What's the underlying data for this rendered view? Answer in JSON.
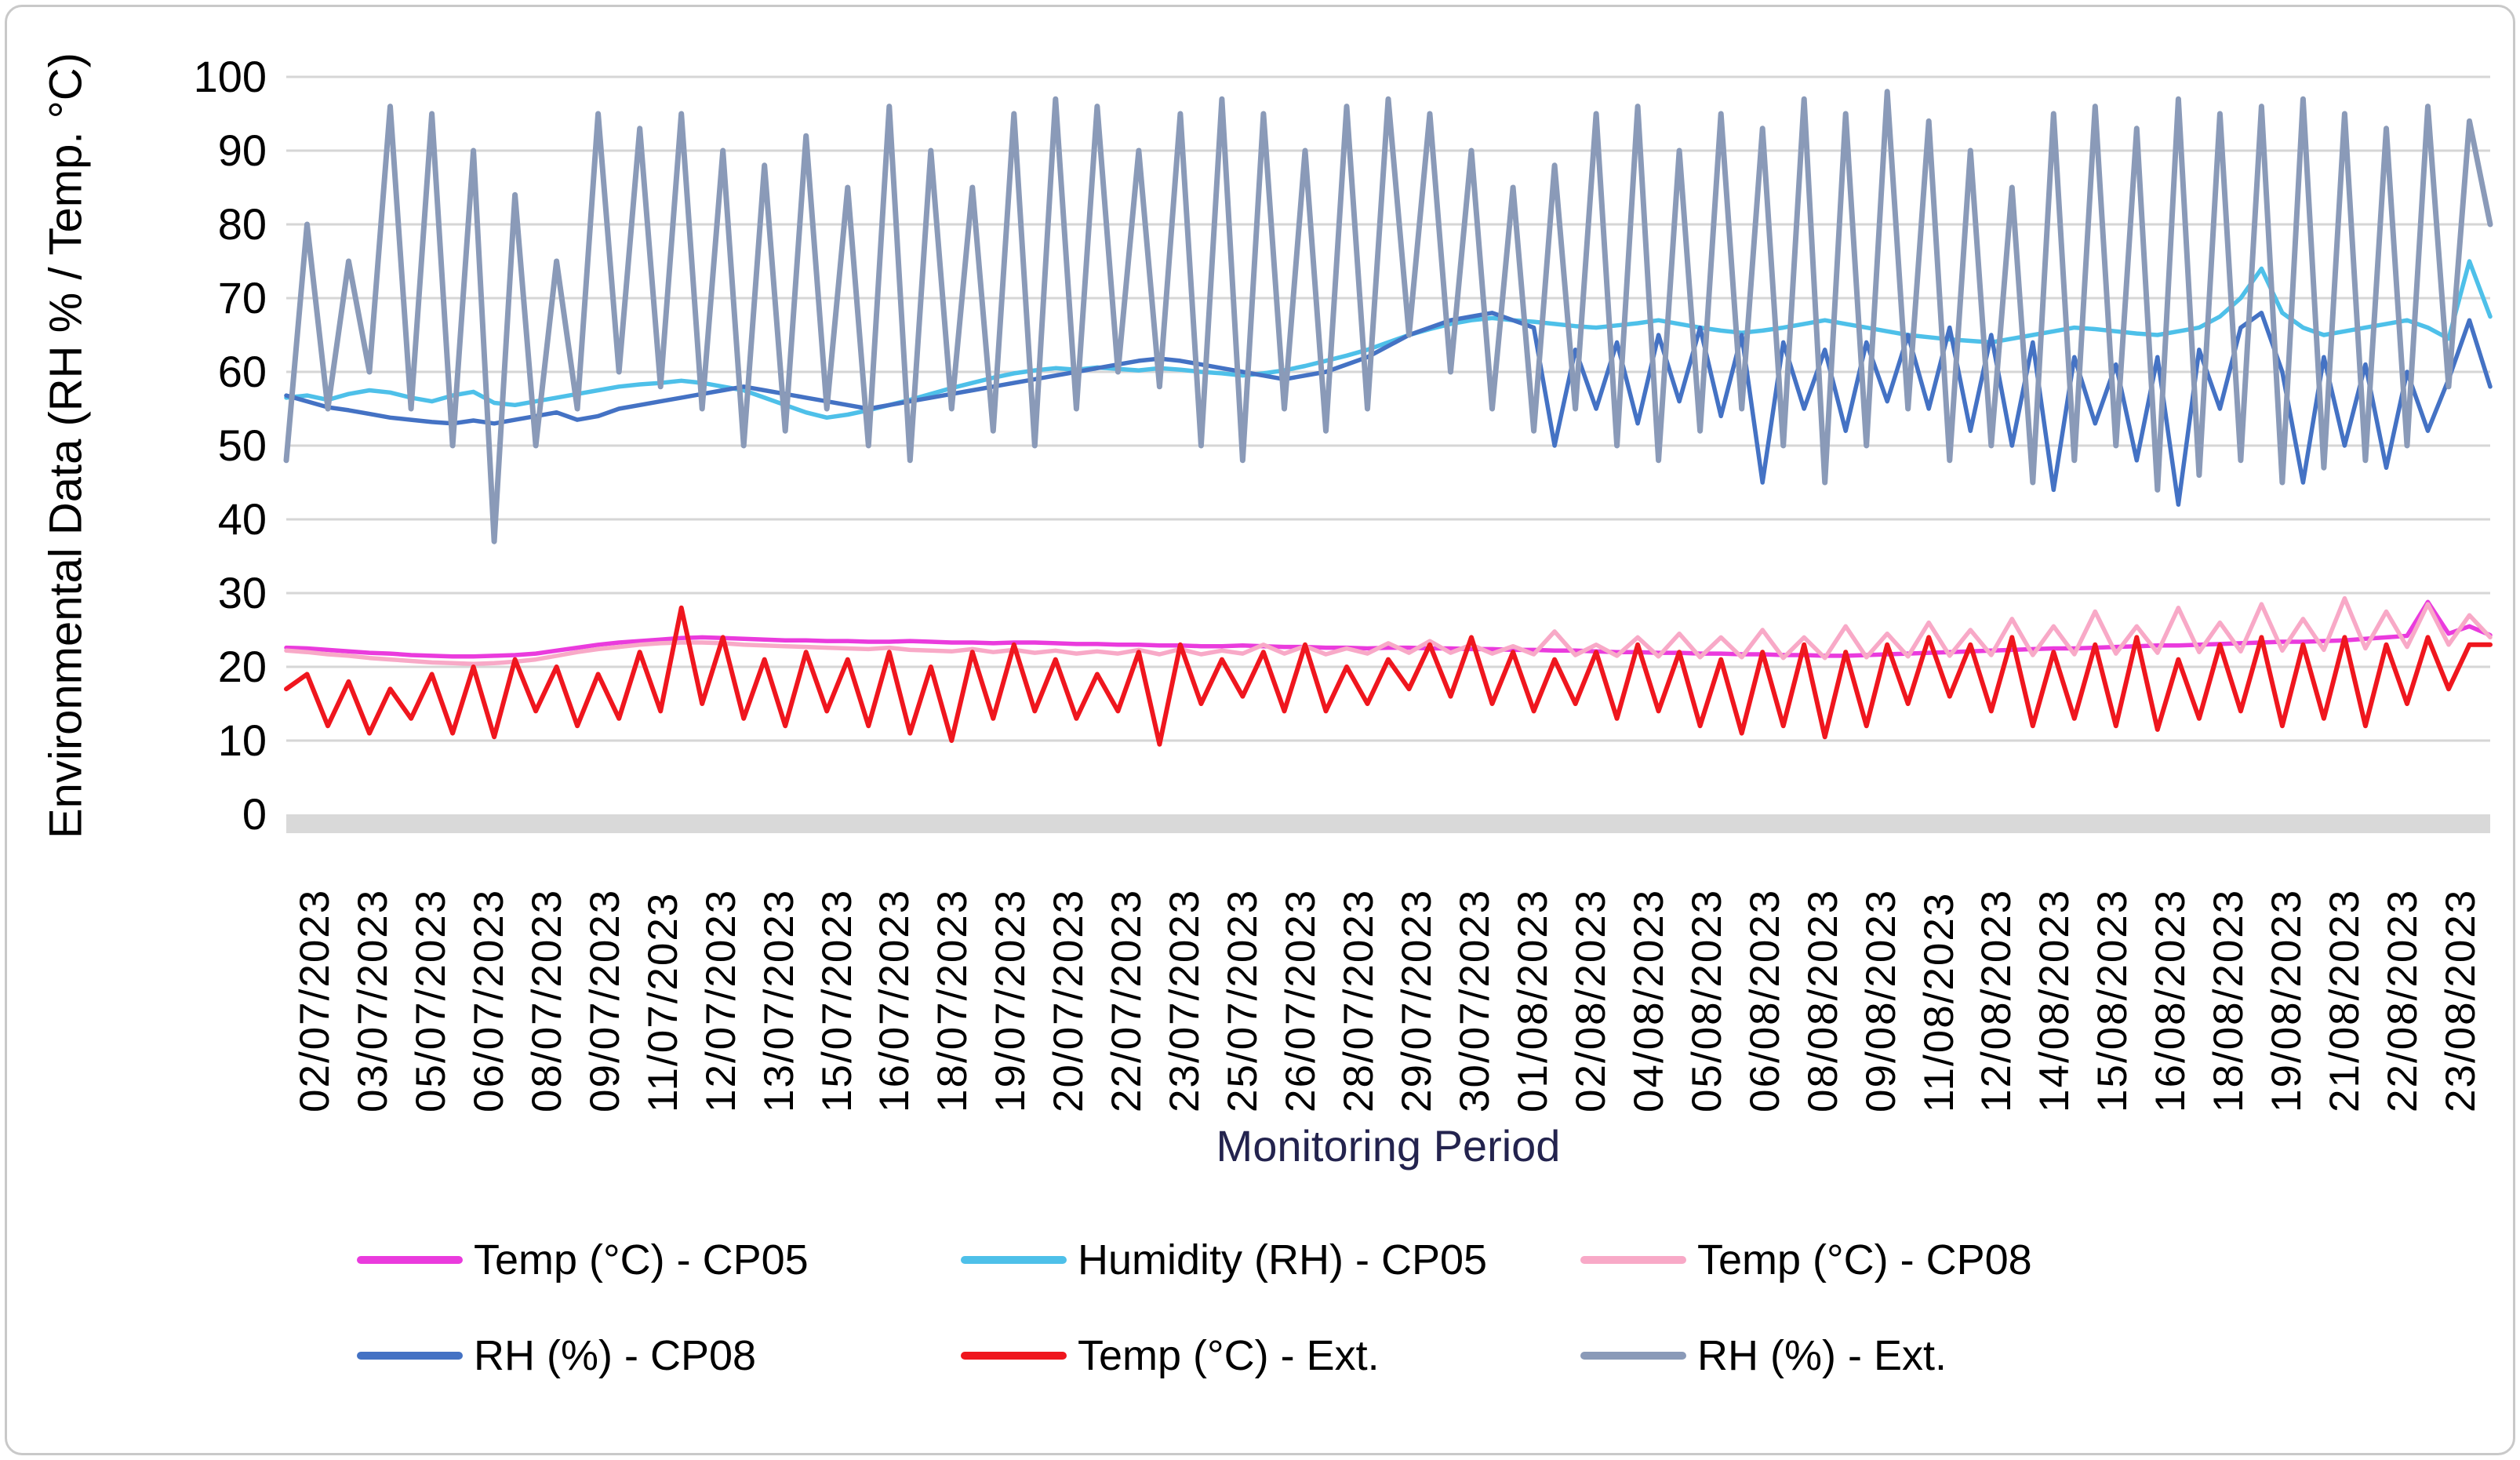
{
  "figure": {
    "y_axis_title": "Environmental Data (RH % / Temp. °C)",
    "x_axis_title": "Monitoring Period"
  },
  "colors": {
    "grid": "#d6d6d6",
    "zero_band": "#d9d9d9",
    "x_title": "#23234e",
    "frame_border": "#c9c9c9",
    "cp05_temp": "#ea3bdd",
    "cp05_humidity": "#4ec0e9",
    "cp08_temp": "#f8a9c7",
    "cp08_rh": "#4472c4",
    "ext_temp": "#ef161e",
    "ext_rh": "#8a9ab8"
  },
  "chart_data": {
    "type": "line",
    "title": "",
    "ylabel": "Environmental Data (RH % / Temp. °C)",
    "xlabel": "Monitoring Period",
    "ylim": [
      0,
      100
    ],
    "y_ticks": [
      0,
      10,
      20,
      30,
      40,
      50,
      60,
      70,
      80,
      90,
      100
    ],
    "grid": "horizontal gridlines, light gray, thick zero axis band",
    "legend_position": "bottom, two rows, three columns",
    "x_tick_labels": [
      "02/07/2023",
      "03/07/2023",
      "05/07/2023",
      "06/07/2023",
      "08/07/2023",
      "09/07/2023",
      "11/07/2023",
      "12/07/2023",
      "13/07/2023",
      "15/07/2023",
      "16/07/2023",
      "18/07/2023",
      "19/07/2023",
      "20/07/2023",
      "22/07/2023",
      "23/07/2023",
      "25/07/2023",
      "26/07/2023",
      "28/07/2023",
      "29/07/2023",
      "30/07/2023",
      "01/08/2023",
      "02/08/2023",
      "04/08/2023",
      "05/08/2023",
      "06/08/2023",
      "08/08/2023",
      "09/08/2023",
      "11/08/2023",
      "12/08/2023",
      "14/08/2023",
      "15/08/2023",
      "16/08/2023",
      "18/08/2023",
      "19/08/2023",
      "21/08/2023",
      "22/08/2023",
      "23/08/2023"
    ],
    "x_unit": "days since 02/07/2023, sampled every 0.5 day",
    "t0": 0,
    "dt": 0.5,
    "t_max": 53,
    "series": [
      {
        "name": "Temp (°C) - CP05",
        "color": "#ea3bdd",
        "stroke_width": 5.5,
        "values": [
          22.6,
          22.5,
          22.3,
          22.1,
          21.9,
          21.8,
          21.6,
          21.5,
          21.4,
          21.4,
          21.5,
          21.6,
          21.8,
          22.2,
          22.6,
          23.0,
          23.3,
          23.5,
          23.7,
          23.9,
          24.0,
          23.9,
          23.8,
          23.7,
          23.6,
          23.6,
          23.5,
          23.5,
          23.4,
          23.4,
          23.5,
          23.4,
          23.3,
          23.3,
          23.2,
          23.3,
          23.3,
          23.2,
          23.1,
          23.1,
          23.0,
          23.0,
          22.9,
          22.9,
          22.8,
          22.8,
          22.9,
          22.8,
          22.7,
          22.7,
          22.6,
          22.6,
          22.5,
          22.6,
          22.6,
          22.5,
          22.5,
          22.4,
          22.4,
          22.3,
          22.3,
          22.2,
          22.2,
          22.1,
          22.0,
          22.0,
          21.9,
          21.9,
          21.8,
          21.8,
          21.7,
          21.7,
          21.6,
          21.6,
          21.5,
          21.5,
          21.6,
          21.7,
          21.8,
          21.9,
          22.0,
          22.1,
          22.2,
          22.3,
          22.4,
          22.5,
          22.5,
          22.6,
          22.7,
          22.8,
          22.9,
          22.9,
          23.0,
          23.1,
          23.2,
          23.3,
          23.4,
          23.4,
          23.5,
          23.6,
          23.8,
          24.0,
          24.2,
          28.8,
          24.5,
          25.5,
          24.3
        ]
      },
      {
        "name": "Humidity (RH) - CP05",
        "color": "#4ec0e9",
        "stroke_width": 5.5,
        "values": [
          56.5,
          56.8,
          56.2,
          57.0,
          57.5,
          57.2,
          56.5,
          56.0,
          56.8,
          57.3,
          55.8,
          55.5,
          56.0,
          56.5,
          57.0,
          57.5,
          58.0,
          58.3,
          58.5,
          58.8,
          58.5,
          58.0,
          57.5,
          56.5,
          55.5,
          54.5,
          53.8,
          54.2,
          54.8,
          55.5,
          56.2,
          57.0,
          57.8,
          58.5,
          59.2,
          59.8,
          60.2,
          60.5,
          60.3,
          60.6,
          60.4,
          60.2,
          60.5,
          60.3,
          60.0,
          59.8,
          59.5,
          59.8,
          60.2,
          60.8,
          61.5,
          62.2,
          63.0,
          64.0,
          65.0,
          65.8,
          66.5,
          67.0,
          67.3,
          67.0,
          66.8,
          66.5,
          66.2,
          66.0,
          66.3,
          66.6,
          67.0,
          66.5,
          66.0,
          65.6,
          65.3,
          65.6,
          66.0,
          66.5,
          67.0,
          66.5,
          66.0,
          65.5,
          65.0,
          64.7,
          64.4,
          64.2,
          64.0,
          64.5,
          65.0,
          65.5,
          66.0,
          65.8,
          65.5,
          65.2,
          65.0,
          65.5,
          66.0,
          67.5,
          70.0,
          74.0,
          68.0,
          66.0,
          65.0,
          65.5,
          66.0,
          66.5,
          67.0,
          66.0,
          64.5,
          75.0,
          67.5
        ]
      },
      {
        "name": "Temp (°C) - CP08",
        "color": "#f8a9c7",
        "stroke_width": 5.5,
        "values": [
          22.2,
          22.0,
          21.7,
          21.5,
          21.2,
          21.0,
          20.8,
          20.6,
          20.5,
          20.4,
          20.5,
          20.7,
          21.0,
          21.5,
          22.0,
          22.4,
          22.7,
          23.0,
          23.2,
          23.3,
          23.3,
          23.2,
          23.0,
          22.9,
          22.8,
          22.7,
          22.6,
          22.5,
          22.4,
          22.6,
          22.3,
          22.2,
          22.1,
          22.4,
          22.0,
          22.3,
          21.9,
          22.2,
          21.8,
          22.1,
          21.8,
          22.3,
          21.7,
          22.4,
          21.7,
          22.2,
          21.8,
          23.0,
          21.8,
          22.8,
          21.7,
          22.5,
          21.8,
          23.2,
          21.9,
          23.5,
          21.9,
          23.0,
          21.8,
          22.8,
          21.7,
          24.8,
          21.6,
          23.0,
          21.5,
          24.0,
          21.4,
          24.5,
          21.3,
          24.0,
          21.3,
          25.0,
          21.2,
          24.0,
          21.2,
          25.5,
          21.3,
          24.5,
          21.4,
          26.0,
          21.5,
          25.0,
          21.6,
          26.5,
          21.6,
          25.5,
          21.7,
          27.5,
          21.8,
          25.5,
          21.9,
          28.0,
          22.0,
          26.0,
          22.1,
          28.5,
          22.2,
          26.5,
          22.3,
          29.3,
          22.5,
          27.5,
          22.7,
          28.5,
          23.0,
          27.0,
          24.0
        ]
      },
      {
        "name": "RH (%) - CP08",
        "color": "#4472c4",
        "stroke_width": 5.5,
        "values": [
          56.8,
          56.0,
          55.2,
          54.8,
          54.3,
          53.8,
          53.5,
          53.2,
          53.0,
          53.4,
          53.0,
          53.5,
          54.0,
          54.5,
          53.5,
          54.0,
          55.0,
          55.5,
          56.0,
          56.5,
          57.0,
          57.5,
          58.0,
          57.5,
          57.0,
          56.5,
          56.0,
          55.5,
          55.0,
          55.5,
          56.0,
          56.5,
          57.0,
          57.5,
          58.0,
          58.5,
          59.0,
          59.5,
          60.0,
          60.5,
          61.0,
          61.5,
          61.8,
          61.5,
          61.0,
          60.5,
          60.0,
          59.5,
          59.0,
          59.5,
          60.0,
          61.0,
          62.0,
          63.5,
          65.0,
          66.0,
          67.0,
          67.5,
          68.0,
          67.0,
          66.0,
          50.0,
          63.0,
          55.0,
          64.0,
          53.0,
          65.0,
          56.0,
          66.0,
          54.0,
          65.0,
          45.0,
          64.0,
          55.0,
          63.0,
          52.0,
          64.0,
          56.0,
          65.0,
          55.0,
          66.0,
          52.0,
          65.0,
          50.0,
          64.0,
          44.0,
          62.0,
          53.0,
          61.0,
          48.0,
          62.0,
          42.0,
          63.0,
          55.0,
          66.0,
          68.0,
          60.0,
          45.0,
          62.0,
          50.0,
          61.0,
          47.0,
          60.0,
          52.0,
          59.0,
          67.0,
          58.0
        ]
      },
      {
        "name": "Temp (°C) - Ext.",
        "color": "#ef161e",
        "stroke_width": 6,
        "values": [
          17,
          19,
          12,
          18,
          11,
          17,
          13,
          19,
          11,
          20,
          10.5,
          21,
          14,
          20,
          12,
          19,
          13,
          22,
          14,
          28,
          15,
          24,
          13,
          21,
          12,
          22,
          14,
          21,
          12,
          22,
          11,
          20,
          10,
          22,
          13,
          23,
          14,
          21,
          13,
          19,
          14,
          22,
          9.5,
          23,
          15,
          21,
          16,
          22,
          14,
          23,
          14,
          20,
          15,
          21,
          17,
          23,
          16,
          24,
          15,
          22,
          14,
          21,
          15,
          22,
          13,
          23,
          14,
          22,
          12,
          21,
          11,
          22,
          12,
          23,
          10.5,
          22,
          12,
          23,
          15,
          24,
          16,
          23,
          14,
          24,
          12,
          22,
          13,
          23,
          12,
          24,
          11.5,
          21,
          13,
          23,
          14,
          24,
          12,
          23,
          13,
          24,
          12,
          23,
          15,
          24,
          17,
          23,
          23
        ]
      },
      {
        "name": "RH (%) - Ext.",
        "color": "#8a9ab8",
        "stroke_width": 7,
        "values": [
          48,
          80,
          55,
          75,
          60,
          96,
          55,
          95,
          50,
          90,
          37,
          84,
          50,
          75,
          55,
          95,
          60,
          93,
          58,
          95,
          55,
          90,
          50,
          88,
          52,
          92,
          55,
          85,
          50,
          96,
          48,
          90,
          55,
          85,
          52,
          95,
          50,
          97,
          55,
          96,
          60,
          90,
          58,
          95,
          50,
          97,
          48,
          95,
          55,
          90,
          52,
          96,
          55,
          97,
          65,
          95,
          60,
          90,
          55,
          85,
          52,
          88,
          55,
          95,
          50,
          96,
          48,
          90,
          52,
          95,
          55,
          93,
          50,
          97,
          45,
          95,
          50,
          98,
          55,
          94,
          48,
          90,
          50,
          85,
          45,
          95,
          48,
          96,
          50,
          93,
          44,
          97,
          46,
          95,
          48,
          96,
          45,
          97,
          47,
          95,
          48,
          93,
          50,
          96,
          58,
          94,
          80
        ]
      }
    ]
  }
}
